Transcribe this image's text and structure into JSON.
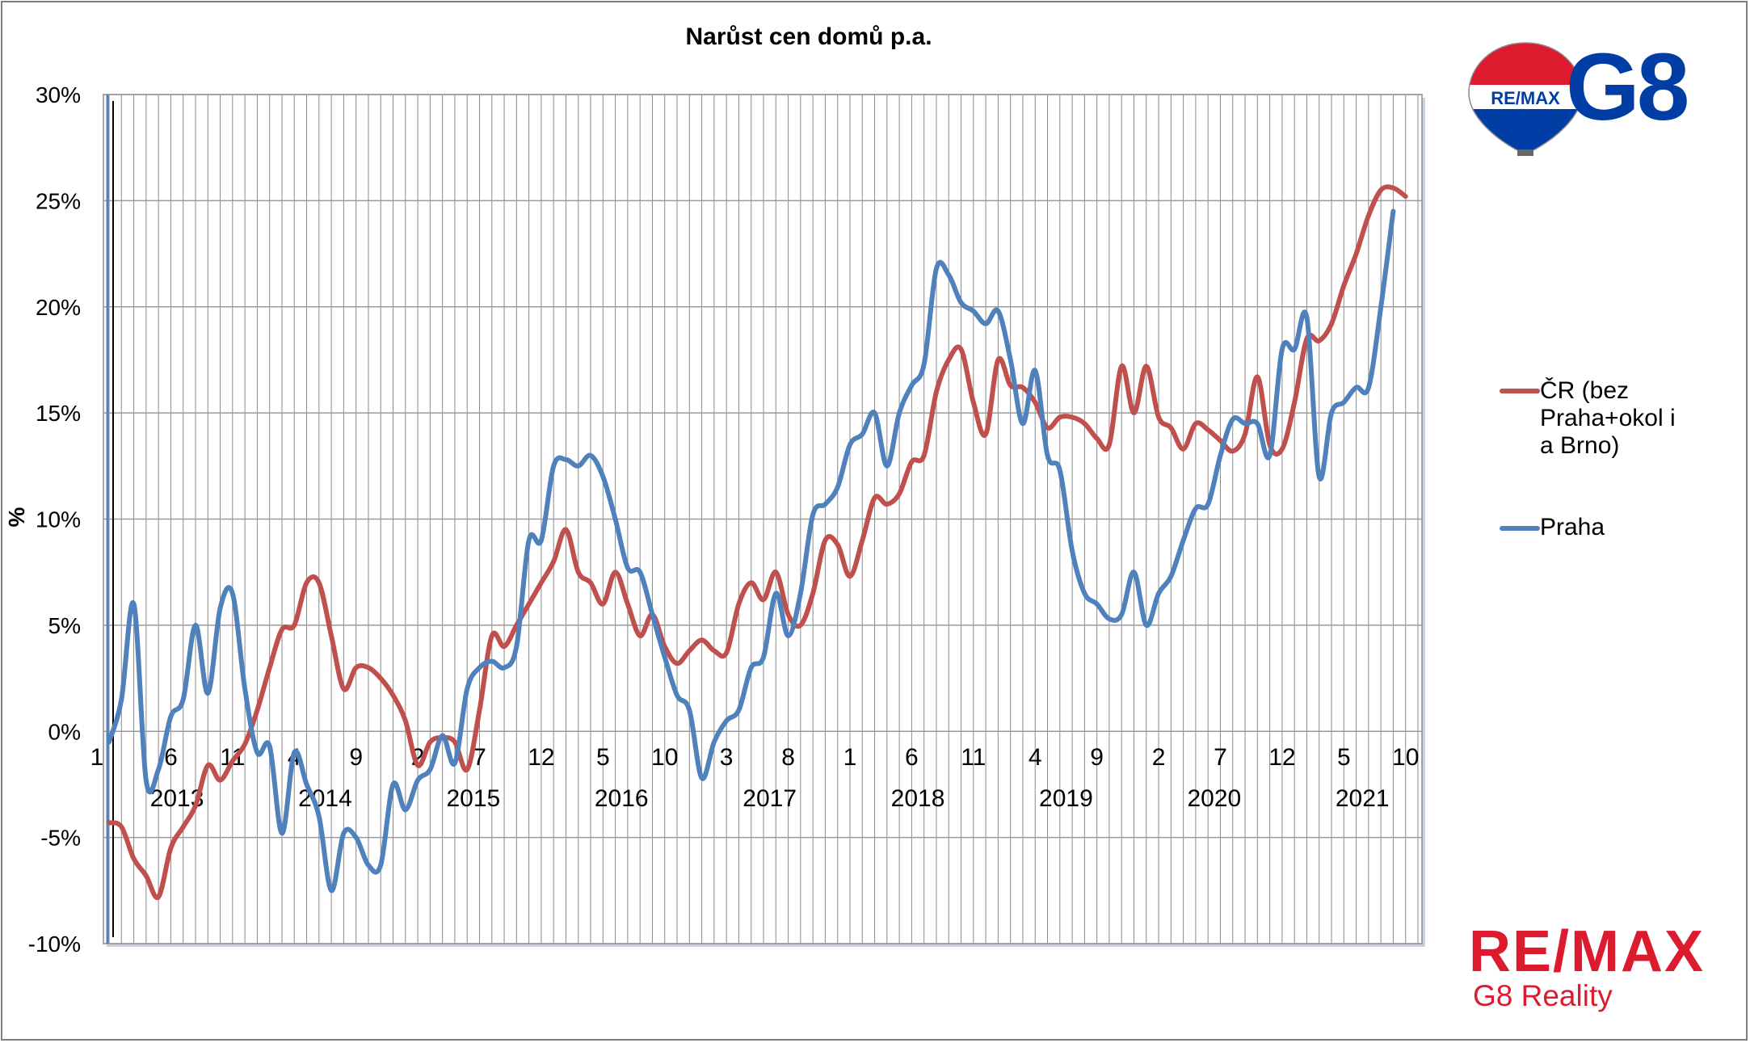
{
  "chart_data": {
    "type": "line",
    "title": "Narůst cen domů p.a.",
    "ylabel": "%",
    "xlabel": "",
    "ylim": [
      -10,
      30
    ],
    "y_ticks": [
      "30%",
      "25%",
      "20%",
      "15%",
      "10%",
      "5%",
      "0%",
      "-5%",
      "-10%"
    ],
    "month_ticks": [
      "1",
      "6",
      "11",
      "4",
      "9",
      "2",
      "7",
      "12",
      "5",
      "10",
      "3",
      "8",
      "1",
      "6",
      "11",
      "4",
      "9",
      "2",
      "7",
      "12",
      "5",
      "10"
    ],
    "year_labels": [
      "2013",
      "2014",
      "2015",
      "2016",
      "2017",
      "2018",
      "2019",
      "2020",
      "2021"
    ],
    "x_range": [
      "2013-01",
      "2021-11"
    ],
    "grid": "vertical",
    "legend_position": "right",
    "series": [
      {
        "name": "ČR (bez Praha+okol i a Brno)",
        "color": "#C0504D",
        "points": [
          [
            "2013-01",
            -4.3
          ],
          [
            "2013-02",
            -4.5
          ],
          [
            "2013-03",
            -6.0
          ],
          [
            "2013-04",
            -6.8
          ],
          [
            "2013-05",
            -7.8
          ],
          [
            "2013-06",
            -5.5
          ],
          [
            "2013-07",
            -4.5
          ],
          [
            "2013-08",
            -3.5
          ],
          [
            "2013-09",
            -1.6
          ],
          [
            "2013-10",
            -2.3
          ],
          [
            "2013-11",
            -1.4
          ],
          [
            "2013-12",
            -0.6
          ],
          [
            "2014-01",
            1.0
          ],
          [
            "2014-02",
            3.0
          ],
          [
            "2014-03",
            4.8
          ],
          [
            "2014-04",
            5.0
          ],
          [
            "2014-05",
            7.0
          ],
          [
            "2014-06",
            7.0
          ],
          [
            "2014-07",
            4.5
          ],
          [
            "2014-08",
            2.0
          ],
          [
            "2014-09",
            3.0
          ],
          [
            "2014-10",
            3.0
          ],
          [
            "2014-11",
            2.5
          ],
          [
            "2014-12",
            1.7
          ],
          [
            "2015-01",
            0.5
          ],
          [
            "2015-02",
            -1.6
          ],
          [
            "2015-03",
            -0.5
          ],
          [
            "2015-04",
            -0.3
          ],
          [
            "2015-05",
            -0.5
          ],
          [
            "2015-06",
            -1.8
          ],
          [
            "2015-07",
            1.0
          ],
          [
            "2015-08",
            4.5
          ],
          [
            "2015-09",
            4.0
          ],
          [
            "2015-10",
            5.0
          ],
          [
            "2015-11",
            6.0
          ],
          [
            "2015-12",
            7.0
          ],
          [
            "2016-01",
            8.0
          ],
          [
            "2016-02",
            9.5
          ],
          [
            "2016-03",
            7.5
          ],
          [
            "2016-04",
            7.0
          ],
          [
            "2016-05",
            6.0
          ],
          [
            "2016-06",
            7.5
          ],
          [
            "2016-07",
            6.0
          ],
          [
            "2016-08",
            4.5
          ],
          [
            "2016-09",
            5.5
          ],
          [
            "2016-10",
            4.0
          ],
          [
            "2016-11",
            3.2
          ],
          [
            "2016-12",
            3.8
          ],
          [
            "2017-01",
            4.3
          ],
          [
            "2017-02",
            3.8
          ],
          [
            "2017-03",
            3.7
          ],
          [
            "2017-04",
            6.0
          ],
          [
            "2017-05",
            7.0
          ],
          [
            "2017-06",
            6.2
          ],
          [
            "2017-07",
            7.5
          ],
          [
            "2017-08",
            5.5
          ],
          [
            "2017-09",
            5.0
          ],
          [
            "2017-10",
            6.5
          ],
          [
            "2017-11",
            9.0
          ],
          [
            "2017-12",
            8.8
          ],
          [
            "2018-01",
            7.3
          ],
          [
            "2018-02",
            9.0
          ],
          [
            "2018-03",
            11.0
          ],
          [
            "2018-04",
            10.7
          ],
          [
            "2018-05",
            11.2
          ],
          [
            "2018-06",
            12.7
          ],
          [
            "2018-07",
            13.0
          ],
          [
            "2018-08",
            16.0
          ],
          [
            "2018-09",
            17.5
          ],
          [
            "2018-10",
            18.0
          ],
          [
            "2018-11",
            15.5
          ],
          [
            "2018-12",
            14.0
          ],
          [
            "2019-01",
            17.5
          ],
          [
            "2019-02",
            16.3
          ],
          [
            "2019-03",
            16.2
          ],
          [
            "2019-04",
            15.5
          ],
          [
            "2019-05",
            14.3
          ],
          [
            "2019-06",
            14.8
          ],
          [
            "2019-07",
            14.8
          ],
          [
            "2019-08",
            14.5
          ],
          [
            "2019-09",
            13.8
          ],
          [
            "2019-10",
            13.5
          ],
          [
            "2019-11",
            17.2
          ],
          [
            "2019-12",
            15.0
          ],
          [
            "2020-01",
            17.2
          ],
          [
            "2020-02",
            14.8
          ],
          [
            "2020-03",
            14.3
          ],
          [
            "2020-04",
            13.3
          ],
          [
            "2020-05",
            14.5
          ],
          [
            "2020-06",
            14.2
          ],
          [
            "2020-07",
            13.7
          ],
          [
            "2020-08",
            13.2
          ],
          [
            "2020-09",
            14.0
          ],
          [
            "2020-10",
            16.7
          ],
          [
            "2020-11",
            13.5
          ],
          [
            "2020-12",
            13.3
          ],
          [
            "2021-01",
            15.5
          ],
          [
            "2021-02",
            18.5
          ],
          [
            "2021-03",
            18.4
          ],
          [
            "2021-04",
            19.2
          ],
          [
            "2021-05",
            21.0
          ],
          [
            "2021-06",
            22.5
          ],
          [
            "2021-07",
            24.3
          ],
          [
            "2021-08",
            25.5
          ],
          [
            "2021-09",
            25.6
          ],
          [
            "2021-10",
            25.2
          ]
        ]
      },
      {
        "name": "Praha",
        "color": "#4F81BD",
        "points": [
          [
            "2013-01",
            -0.5
          ],
          [
            "2013-02",
            1.5
          ],
          [
            "2013-03",
            6.0
          ],
          [
            "2013-04",
            -2.3
          ],
          [
            "2013-05",
            -1.8
          ],
          [
            "2013-06",
            0.7
          ],
          [
            "2013-07",
            1.5
          ],
          [
            "2013-08",
            5.0
          ],
          [
            "2013-09",
            1.8
          ],
          [
            "2013-10",
            5.8
          ],
          [
            "2013-11",
            6.5
          ],
          [
            "2013-12",
            2.0
          ],
          [
            "2014-01",
            -1.0
          ],
          [
            "2014-02",
            -0.7
          ],
          [
            "2014-03",
            -4.8
          ],
          [
            "2014-04",
            -1.0
          ],
          [
            "2014-05",
            -2.5
          ],
          [
            "2014-06",
            -4.0
          ],
          [
            "2014-07",
            -7.5
          ],
          [
            "2014-08",
            -4.8
          ],
          [
            "2014-09",
            -5.0
          ],
          [
            "2014-10",
            -6.3
          ],
          [
            "2014-11",
            -6.3
          ],
          [
            "2014-12",
            -2.5
          ],
          [
            "2015-01",
            -3.7
          ],
          [
            "2015-02",
            -2.3
          ],
          [
            "2015-03",
            -1.8
          ],
          [
            "2015-04",
            -0.2
          ],
          [
            "2015-05",
            -1.5
          ],
          [
            "2015-06",
            2.0
          ],
          [
            "2015-07",
            3.0
          ],
          [
            "2015-08",
            3.3
          ],
          [
            "2015-09",
            3.0
          ],
          [
            "2015-10",
            4.0
          ],
          [
            "2015-11",
            9.0
          ],
          [
            "2015-12",
            9.0
          ],
          [
            "2016-01",
            12.5
          ],
          [
            "2016-02",
            12.8
          ],
          [
            "2016-03",
            12.5
          ],
          [
            "2016-04",
            13.0
          ],
          [
            "2016-05",
            12.0
          ],
          [
            "2016-06",
            10.0
          ],
          [
            "2016-07",
            7.7
          ],
          [
            "2016-08",
            7.5
          ],
          [
            "2016-09",
            5.5
          ],
          [
            "2016-10",
            3.5
          ],
          [
            "2016-11",
            1.7
          ],
          [
            "2016-12",
            1.0
          ],
          [
            "2017-01",
            -2.2
          ],
          [
            "2017-02",
            -0.5
          ],
          [
            "2017-03",
            0.5
          ],
          [
            "2017-04",
            1.0
          ],
          [
            "2017-05",
            3.0
          ],
          [
            "2017-06",
            3.5
          ],
          [
            "2017-07",
            6.5
          ],
          [
            "2017-08",
            4.5
          ],
          [
            "2017-09",
            6.5
          ],
          [
            "2017-10",
            10.2
          ],
          [
            "2017-11",
            10.7
          ],
          [
            "2017-12",
            11.5
          ],
          [
            "2018-01",
            13.5
          ],
          [
            "2018-02",
            14.0
          ],
          [
            "2018-03",
            15.0
          ],
          [
            "2018-04",
            12.5
          ],
          [
            "2018-05",
            15.0
          ],
          [
            "2018-06",
            16.3
          ],
          [
            "2018-07",
            17.3
          ],
          [
            "2018-08",
            21.8
          ],
          [
            "2018-09",
            21.5
          ],
          [
            "2018-10",
            20.2
          ],
          [
            "2018-11",
            19.8
          ],
          [
            "2018-12",
            19.2
          ],
          [
            "2019-01",
            19.8
          ],
          [
            "2019-02",
            17.5
          ],
          [
            "2019-03",
            14.5
          ],
          [
            "2019-04",
            17.0
          ],
          [
            "2019-05",
            13.0
          ],
          [
            "2019-06",
            12.3
          ],
          [
            "2019-07",
            8.5
          ],
          [
            "2019-08",
            6.5
          ],
          [
            "2019-09",
            6.0
          ],
          [
            "2019-10",
            5.3
          ],
          [
            "2019-11",
            5.5
          ],
          [
            "2019-12",
            7.5
          ],
          [
            "2020-01",
            5.0
          ],
          [
            "2020-02",
            6.5
          ],
          [
            "2020-03",
            7.3
          ],
          [
            "2020-04",
            9.0
          ],
          [
            "2020-05",
            10.5
          ],
          [
            "2020-06",
            10.7
          ],
          [
            "2020-07",
            13.0
          ],
          [
            "2020-08",
            14.7
          ],
          [
            "2020-09",
            14.5
          ],
          [
            "2020-10",
            14.5
          ],
          [
            "2020-11",
            13.0
          ],
          [
            "2020-12",
            18.0
          ],
          [
            "2021-01",
            18.0
          ],
          [
            "2021-02",
            19.5
          ],
          [
            "2021-03",
            12.0
          ],
          [
            "2021-04",
            15.0
          ],
          [
            "2021-05",
            15.5
          ],
          [
            "2021-06",
            16.2
          ],
          [
            "2021-07",
            16.2
          ],
          [
            "2021-08",
            20.0
          ],
          [
            "2021-09",
            24.5
          ]
        ]
      }
    ]
  },
  "logo": {
    "balloon_text": "RE/MAX",
    "office_mark": "G8",
    "wordmark": "RE/MAX",
    "tagline": "G8 Reality",
    "brand_red": "#DC1C2E",
    "brand_blue": "#003DA5"
  }
}
